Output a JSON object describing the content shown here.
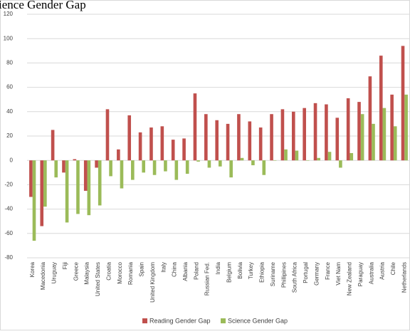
{
  "chart_data": {
    "type": "bar",
    "title": "ience Gender Gap",
    "categories": [
      "Korea",
      "Macedonia",
      "Uruguay",
      "Fiji",
      "Greece",
      "Malaysia",
      "United States",
      "Croatia",
      "Morocco",
      "Romania",
      "Spain",
      "United Kingdom",
      "Italy",
      "China",
      "Albania",
      "Poland",
      "Russian Fed.",
      "India",
      "Belgium",
      "Bolivia",
      "Turkey",
      "Ethiopia",
      "Suriname",
      "Phillipines",
      "South Africa",
      "Portugal",
      "Germany",
      "France",
      "Viet Nam",
      "New Zealand",
      "Paraguay",
      "Australia",
      "Austria",
      "Chile",
      "Netherlands"
    ],
    "series": [
      {
        "name": "Reading Gender Gap",
        "color": "#c0504d",
        "values": [
          -30,
          -54,
          25,
          -10,
          1,
          -25,
          -6,
          42,
          9,
          37,
          23,
          27,
          28,
          17,
          18,
          55,
          38,
          33,
          30,
          38,
          32,
          27,
          38,
          42,
          40,
          43,
          47,
          46,
          35,
          51,
          48,
          69,
          86,
          54,
          94
        ]
      },
      {
        "name": "Science Gender Gap",
        "color": "#9bbb59",
        "values": [
          -66,
          -38,
          -14,
          -51,
          -44,
          -45,
          -37,
          -13,
          -23,
          -16,
          -10,
          -12,
          -9,
          -16,
          -11,
          -1,
          -6,
          -5,
          -14,
          2,
          -4,
          -12,
          0,
          9,
          8,
          0,
          2,
          7,
          -6,
          6,
          38,
          30,
          43,
          28,
          54
        ]
      }
    ],
    "ylim": [
      -80,
      120
    ],
    "yticks": [
      -80,
      -60,
      -40,
      -20,
      0,
      20,
      40,
      60,
      80,
      100,
      120
    ],
    "grid": true,
    "legend": "bottom"
  }
}
